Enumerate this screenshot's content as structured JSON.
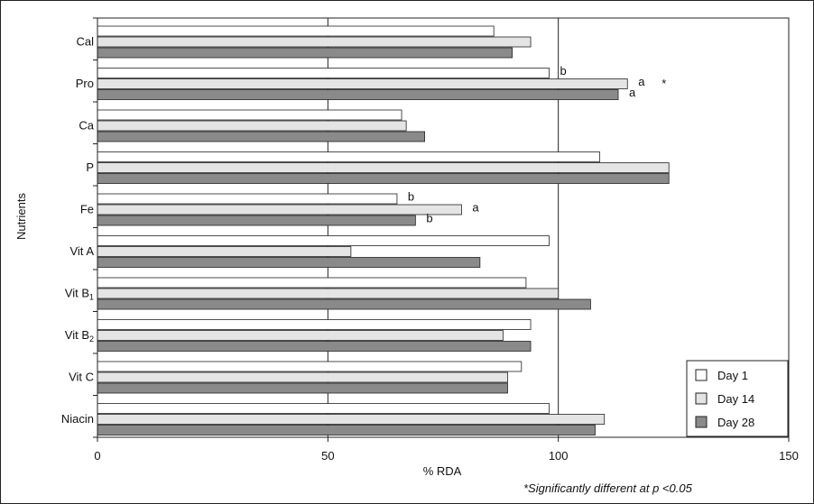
{
  "chart_data": {
    "type": "bar",
    "orientation": "horizontal",
    "categories": [
      "Cal",
      "Pro",
      "Ca",
      "P",
      "Fe",
      "Vit A",
      "Vit B1",
      "Vit B2",
      "Vit C",
      "Niacin"
    ],
    "category_labels": [
      {
        "base": "Cal",
        "sub": ""
      },
      {
        "base": "Pro",
        "sub": ""
      },
      {
        "base": "Ca",
        "sub": ""
      },
      {
        "base": "P",
        "sub": ""
      },
      {
        "base": "Fe",
        "sub": ""
      },
      {
        "base": "Vit A",
        "sub": ""
      },
      {
        "base": "Vit B",
        "sub": "1"
      },
      {
        "base": "Vit B",
        "sub": "2"
      },
      {
        "base": "Vit C",
        "sub": ""
      },
      {
        "base": "Niacin",
        "sub": ""
      }
    ],
    "series": [
      {
        "name": "Day 1",
        "color": "#ffffff",
        "values": [
          86,
          98,
          66,
          109,
          65,
          98,
          93,
          94,
          92,
          98
        ]
      },
      {
        "name": "Day 14",
        "color": "#e4e4e4",
        "values": [
          94,
          115,
          67,
          124,
          79,
          55,
          100,
          88,
          89,
          110
        ]
      },
      {
        "name": "Day 28",
        "color": "#8a8a8a",
        "values": [
          90,
          113,
          71,
          124,
          69,
          83,
          107,
          94,
          89,
          108
        ]
      }
    ],
    "annotations": [
      {
        "category": "Pro",
        "series": "Day 1",
        "text": "b"
      },
      {
        "category": "Pro",
        "series": "Day 14",
        "text": "a"
      },
      {
        "category": "Pro",
        "series": "Day 28",
        "text": "a"
      },
      {
        "category": "Pro",
        "series": "Day 14",
        "text": "*"
      },
      {
        "category": "Fe",
        "series": "Day 1",
        "text": "b"
      },
      {
        "category": "Fe",
        "series": "Day 14",
        "text": "a"
      },
      {
        "category": "Fe",
        "series": "Day 28",
        "text": "b"
      }
    ],
    "xticks": [
      0,
      50,
      100,
      150
    ],
    "xlim": [
      0,
      150
    ],
    "xlabel": "% RDA",
    "ylabel": "Nutrients",
    "title": "",
    "grid": "vertical gridlines at 50 and 100",
    "legend": "bottom-right",
    "footnote": "*Significantly different at p <0.05"
  }
}
